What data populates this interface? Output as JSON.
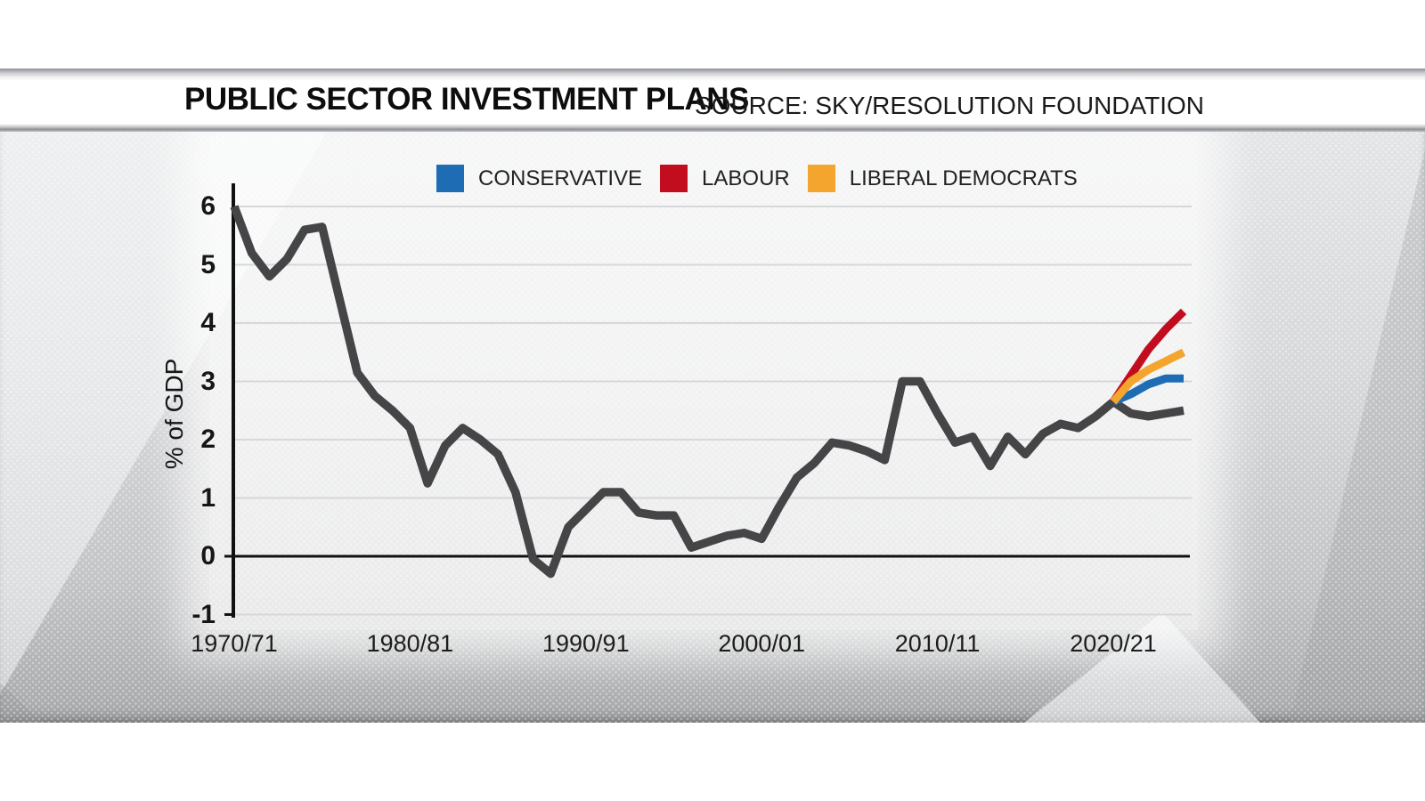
{
  "header": {
    "title": "PUBLIC SECTOR INVESTMENT PLANS",
    "source": "SOURCE: SKY/RESOLUTION FOUNDATION"
  },
  "chart_data": {
    "type": "line",
    "title": "PUBLIC SECTOR INVESTMENT PLANS",
    "source": "SOURCE: SKY/RESOLUTION FOUNDATION",
    "xlabel": "",
    "ylabel": "% of GDP",
    "ylim": [
      -1,
      6
    ],
    "yticks": [
      6,
      5,
      4,
      3,
      2,
      1,
      0,
      -1
    ],
    "xtick_labels": [
      "1970/71",
      "1980/81",
      "1990/91",
      "2000/01",
      "2010/11",
      "2020/21"
    ],
    "xtick_years": [
      1970,
      1980,
      1990,
      2000,
      2010,
      2020
    ],
    "grid": "light horizontal gridlines, heavy black zero line",
    "legend_position": "top-center",
    "legend": [
      {
        "label": "CONSERVATIVE",
        "color": "#1e6cb4"
      },
      {
        "label": "LABOUR",
        "color": "#c20d1e"
      },
      {
        "label": "LIBERAL DEMOCRATS",
        "color": "#f3a52d"
      }
    ],
    "series": [
      {
        "name": "historical",
        "color": "#454547",
        "width": 9.5,
        "x_start": 1970,
        "x_step": 1,
        "values": [
          6.0,
          5.2,
          4.8,
          5.1,
          5.6,
          5.65,
          4.4,
          3.15,
          2.75,
          2.5,
          2.2,
          1.25,
          1.9,
          2.2,
          2.0,
          1.75,
          1.1,
          -0.05,
          -0.3,
          0.5,
          0.8,
          1.1,
          1.1,
          0.75,
          0.7,
          0.7,
          0.15,
          0.25,
          0.35,
          0.4,
          0.3,
          0.85,
          1.35,
          1.6,
          1.95,
          1.9,
          1.8,
          1.65,
          3.0,
          3.0,
          2.45,
          1.95,
          2.05,
          1.55,
          2.05,
          1.75,
          2.1,
          2.27,
          2.2,
          2.4,
          2.65,
          2.45,
          2.4,
          2.45,
          2.5
        ]
      },
      {
        "name": "conservative",
        "color": "#1e6cb4",
        "width": 9,
        "x_start": 2020,
        "x_step": 1,
        "values": [
          2.65,
          2.78,
          2.95,
          3.05,
          3.05
        ]
      },
      {
        "name": "labour",
        "color": "#c20d1e",
        "width": 9,
        "x_start": 2020,
        "x_step": 1,
        "values": [
          2.65,
          3.1,
          3.55,
          3.9,
          4.2
        ]
      },
      {
        "name": "libdem",
        "color": "#f3a52d",
        "width": 9,
        "x_start": 2020,
        "x_step": 1,
        "values": [
          2.65,
          3.0,
          3.2,
          3.35,
          3.5
        ]
      }
    ]
  }
}
